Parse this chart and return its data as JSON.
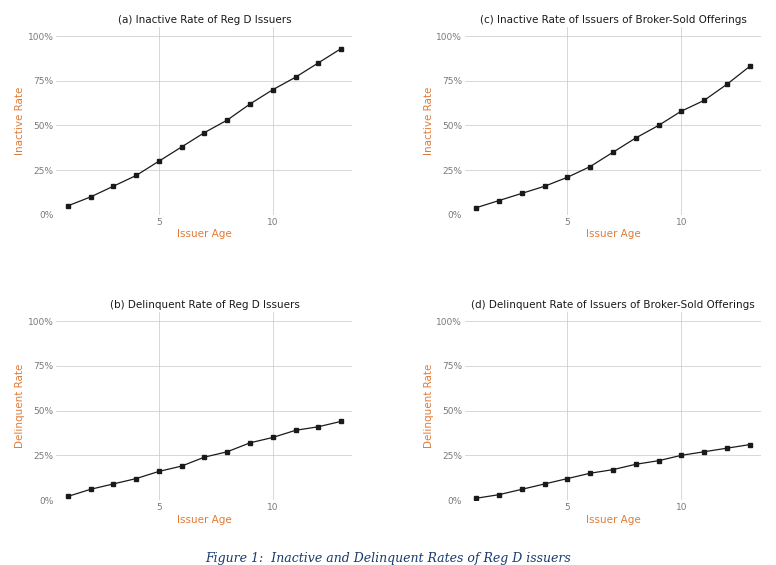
{
  "panel_a": {
    "title": "(a) Inactive Rate of Reg D Issuers",
    "x": [
      1,
      2,
      3,
      4,
      5,
      6,
      7,
      8,
      9,
      10,
      11,
      12,
      13
    ],
    "y": [
      0.05,
      0.1,
      0.16,
      0.22,
      0.3,
      0.38,
      0.46,
      0.53,
      0.62,
      0.7,
      0.77,
      0.85,
      0.93
    ],
    "ylabel": "Inactive Rate",
    "xlabel": "Issuer Age",
    "ylim": [
      0,
      1.05
    ],
    "yticks": [
      0,
      0.25,
      0.5,
      0.75,
      1.0
    ],
    "ytick_labels": [
      "0%",
      "25%",
      "50%",
      "75%",
      "100%"
    ]
  },
  "panel_b": {
    "title": "(b) Delinquent Rate of Reg D Issuers",
    "x": [
      1,
      2,
      3,
      4,
      5,
      6,
      7,
      8,
      9,
      10,
      11,
      12,
      13
    ],
    "y": [
      0.02,
      0.06,
      0.09,
      0.12,
      0.16,
      0.19,
      0.24,
      0.27,
      0.32,
      0.35,
      0.39,
      0.41,
      0.44
    ],
    "ylabel": "Delinquent Rate",
    "xlabel": "Issuer Age",
    "ylim": [
      0,
      1.05
    ],
    "yticks": [
      0,
      0.25,
      0.5,
      0.75,
      1.0
    ],
    "ytick_labels": [
      "0%",
      "25%",
      "50%",
      "75%",
      "100%"
    ]
  },
  "panel_c": {
    "title": "(c) Inactive Rate of Issuers of Broker-Sold Offerings",
    "x": [
      1,
      2,
      3,
      4,
      5,
      6,
      7,
      8,
      9,
      10,
      11,
      12,
      13
    ],
    "y": [
      0.04,
      0.08,
      0.12,
      0.16,
      0.21,
      0.27,
      0.35,
      0.43,
      0.5,
      0.58,
      0.64,
      0.73,
      0.83
    ],
    "ylabel": "Inactive Rate",
    "xlabel": "Issuer Age",
    "ylim": [
      0,
      1.05
    ],
    "yticks": [
      0,
      0.25,
      0.5,
      0.75,
      1.0
    ],
    "ytick_labels": [
      "0%",
      "25%",
      "50%",
      "75%",
      "100%"
    ]
  },
  "panel_d": {
    "title": "(d) Delinquent Rate of Issuers of Broker-Sold Offerings",
    "x": [
      1,
      2,
      3,
      4,
      5,
      6,
      7,
      8,
      9,
      10,
      11,
      12,
      13
    ],
    "y": [
      0.01,
      0.03,
      0.06,
      0.09,
      0.12,
      0.15,
      0.17,
      0.2,
      0.22,
      0.25,
      0.27,
      0.29,
      0.31
    ],
    "ylabel": "Delinquent Rate",
    "xlabel": "Issuer Age",
    "ylim": [
      0,
      1.05
    ],
    "yticks": [
      0,
      0.25,
      0.5,
      0.75,
      1.0
    ],
    "ytick_labels": [
      "0%",
      "25%",
      "50%",
      "75%",
      "100%"
    ]
  },
  "figure_caption": "Figure 1:  Inactive and Delinquent Rates of Reg D issuers",
  "line_color": "#1a1a1a",
  "marker": "s",
  "marker_size": 3.5,
  "bg_color": "#ffffff",
  "plot_bg_color": "#ffffff",
  "grid_color": "#c8c8c8",
  "title_color": "#1a1a1a",
  "axis_label_color": "#E07B39",
  "tick_label_color": "#7a7a7a",
  "caption_color": "#1a3a6e",
  "xtick_positions": [
    5,
    10
  ],
  "xtick_labels": [
    "5",
    "10"
  ]
}
